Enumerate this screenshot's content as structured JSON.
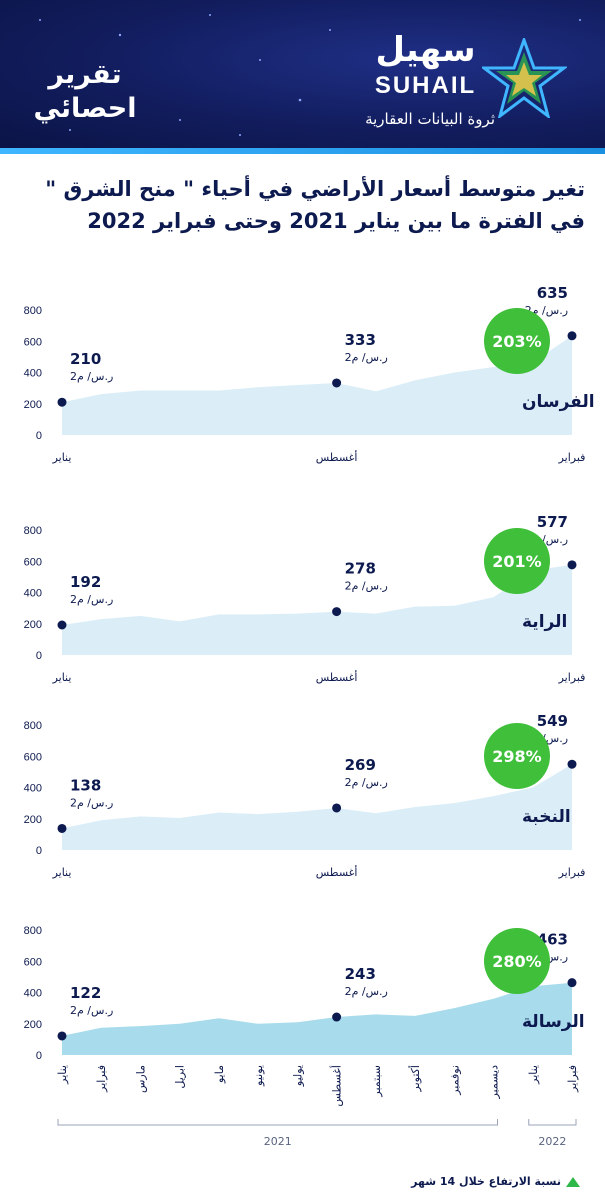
{
  "header": {
    "report_label_line1": "تقرير",
    "report_label_line2": "احصائي",
    "brand_arabic": "سهيل",
    "brand_english": "SUHAIL",
    "brand_tagline": "ثروة البيانات العقارية",
    "logo_icon": "star-logo-icon",
    "background_color": "#121d5e",
    "band_color": "#3fb6ff"
  },
  "title": {
    "line1": "تغير متوسط أسعار الأراضي في أحياء \" منح الشرق \"",
    "line2": "في الفترة ما بين يناير 2021 وحتى فبراير 2022"
  },
  "colors": {
    "area_fill": "#dbeef7",
    "area_fill_last": "#a8dcec",
    "point": "#0d1a4f",
    "badge": "#3fbf3a",
    "text": "#0d1a4f"
  },
  "chart_data": [
    {
      "type": "area",
      "series_label": "الفرسان",
      "change_badge": "203%",
      "ylim": [
        0,
        800
      ],
      "yticks": [
        "0",
        "200",
        "400",
        "600",
        "800"
      ],
      "x": [
        0,
        1,
        2,
        3,
        4,
        5,
        6,
        7,
        8,
        9,
        10,
        11,
        12,
        13
      ],
      "values": [
        210,
        262,
        285,
        285,
        285,
        305,
        320,
        333,
        280,
        350,
        400,
        435,
        465,
        635
      ],
      "xticks": [
        {
          "i": 0,
          "label": "يناير"
        },
        {
          "i": 7,
          "label": "أغسطس"
        },
        {
          "i": 13,
          "label": "فبراير"
        }
      ],
      "callouts": [
        {
          "i": 0,
          "value": "210",
          "unit": "ر.س/ م2"
        },
        {
          "i": 7,
          "value": "333",
          "unit": "ر.س/ م2"
        },
        {
          "i": 13,
          "value": "635",
          "unit": "ر.س/ م2"
        }
      ]
    },
    {
      "type": "area",
      "series_label": "الراية",
      "change_badge": "201%",
      "ylim": [
        0,
        800
      ],
      "yticks": [
        "0",
        "200",
        "400",
        "600",
        "800"
      ],
      "x": [
        0,
        1,
        2,
        3,
        4,
        5,
        6,
        7,
        8,
        9,
        10,
        11,
        12,
        13
      ],
      "values": [
        192,
        230,
        250,
        215,
        260,
        260,
        265,
        278,
        265,
        310,
        315,
        370,
        540,
        577
      ],
      "xticks": [
        {
          "i": 0,
          "label": "يناير"
        },
        {
          "i": 7,
          "label": "أغسطس"
        },
        {
          "i": 13,
          "label": "فبراير"
        }
      ],
      "callouts": [
        {
          "i": 0,
          "value": "192",
          "unit": "ر.س/ م2"
        },
        {
          "i": 7,
          "value": "278",
          "unit": "ر.س/ م2"
        },
        {
          "i": 13,
          "value": "577",
          "unit": "ر.س/ م2"
        }
      ]
    },
    {
      "type": "area",
      "series_label": "النخبة",
      "change_badge": "298%",
      "ylim": [
        0,
        800
      ],
      "yticks": [
        "0",
        "200",
        "400",
        "600",
        "800"
      ],
      "x": [
        0,
        1,
        2,
        3,
        4,
        5,
        6,
        7,
        8,
        9,
        10,
        11,
        12,
        13
      ],
      "values": [
        138,
        190,
        215,
        205,
        240,
        230,
        245,
        269,
        235,
        275,
        300,
        345,
        400,
        549
      ],
      "xticks": [
        {
          "i": 0,
          "label": "يناير"
        },
        {
          "i": 7,
          "label": "أغسطس"
        },
        {
          "i": 13,
          "label": "فبراير"
        }
      ],
      "callouts": [
        {
          "i": 0,
          "value": "138",
          "unit": "ر.س/ م2"
        },
        {
          "i": 7,
          "value": "269",
          "unit": "ر.س/ م2"
        },
        {
          "i": 13,
          "value": "549",
          "unit": "ر.س/ م2"
        }
      ]
    },
    {
      "type": "area",
      "series_label": "الرسالة",
      "change_badge": "280%",
      "ylim": [
        0,
        800
      ],
      "yticks": [
        "0",
        "200",
        "400",
        "600",
        "800"
      ],
      "x": [
        0,
        1,
        2,
        3,
        4,
        5,
        6,
        7,
        8,
        9,
        10,
        11,
        12,
        13
      ],
      "values": [
        122,
        175,
        185,
        200,
        235,
        200,
        210,
        243,
        260,
        250,
        300,
        360,
        440,
        463
      ],
      "xticks": [
        {
          "i": 0,
          "label": "يناير"
        },
        {
          "i": 1,
          "label": "فبراير"
        },
        {
          "i": 2,
          "label": "مارس"
        },
        {
          "i": 3,
          "label": "ابريل"
        },
        {
          "i": 4,
          "label": "مايو"
        },
        {
          "i": 5,
          "label": "يونيو"
        },
        {
          "i": 6,
          "label": "يوليو"
        },
        {
          "i": 7,
          "label": "أغسطس"
        },
        {
          "i": 8,
          "label": "سبتمبر"
        },
        {
          "i": 9,
          "label": "أكتوبر"
        },
        {
          "i": 10,
          "label": "نوفمبر"
        },
        {
          "i": 11,
          "label": "ديسمبر"
        },
        {
          "i": 12,
          "label": "يناير"
        },
        {
          "i": 13,
          "label": "فبراير"
        }
      ],
      "rotate_xticks": true,
      "year_groups": [
        {
          "from": 0,
          "to": 11,
          "label": "2021"
        },
        {
          "from": 12,
          "to": 13,
          "label": "2022"
        }
      ],
      "callouts": [
        {
          "i": 0,
          "value": "122",
          "unit": "ر.س/ م2"
        },
        {
          "i": 7,
          "value": "243",
          "unit": "ر.س/ م2"
        },
        {
          "i": 13,
          "value": "463",
          "unit": "ر.س/ م2"
        }
      ]
    }
  ],
  "footer": {
    "note": "نسبة الارتفاع خلال 14 شهر",
    "icon": "triangle-up-icon"
  }
}
